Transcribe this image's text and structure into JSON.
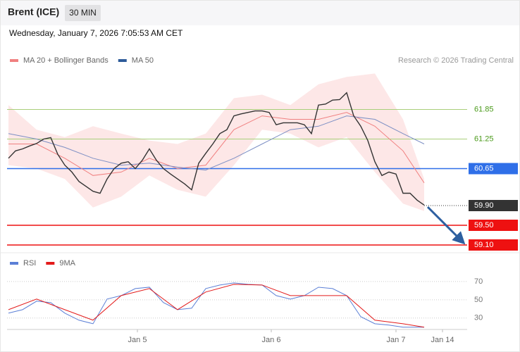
{
  "header": {
    "symbol": "Brent (ICE)",
    "interval": "30 MIN",
    "timestamp": "Wednesday, January 7, 2026 7:05:53 AM CET",
    "credit": "Research © 2026 Trading Central"
  },
  "chart_data": [
    {
      "type": "line",
      "xlim": [
        0,
        65.1
      ],
      "ylim": [
        59.0,
        63.5
      ],
      "series": [
        {
          "name": "MA 20 + Bollinger Bands",
          "color": "#f08080",
          "band_color": "#fde3e3",
          "x": [
            0,
            4,
            8,
            12,
            16,
            20,
            24,
            28,
            32,
            36,
            40,
            44,
            48,
            52,
            56,
            59
          ],
          "values": [
            61.15,
            61.15,
            60.86,
            60.51,
            60.58,
            60.86,
            60.65,
            60.72,
            61.44,
            61.72,
            61.65,
            61.65,
            61.79,
            61.51,
            61.01,
            60.36
          ],
          "upper": [
            61.94,
            61.44,
            61.29,
            61.51,
            61.36,
            61.22,
            61.15,
            61.36,
            62.08,
            62.15,
            61.94,
            62.36,
            62.51,
            62.58,
            61.65,
            60.44
          ],
          "lower": [
            60.72,
            60.65,
            60.44,
            59.86,
            60.08,
            60.51,
            60.22,
            60.08,
            60.72,
            61.44,
            61.36,
            61.08,
            61.29,
            60.58,
            59.94,
            59.79
          ]
        },
        {
          "name": "MA 50",
          "color": "#2e5b9a",
          "line_color": "#7d8fc4",
          "x": [
            0,
            4,
            8,
            12,
            16,
            20,
            24,
            28,
            32,
            36,
            40,
            44,
            48,
            52,
            56,
            59
          ],
          "values": [
            61.36,
            61.25,
            61.08,
            60.86,
            60.72,
            60.76,
            60.68,
            60.62,
            60.86,
            61.15,
            61.44,
            61.51,
            61.72,
            61.65,
            61.36,
            61.15
          ]
        },
        {
          "color": "#333333",
          "x": [
            0,
            1,
            2,
            3,
            4,
            5,
            6,
            7,
            8,
            9,
            10,
            11,
            12,
            13,
            14,
            15,
            16,
            17,
            18,
            19,
            20,
            21,
            22,
            23,
            24,
            25,
            26,
            27,
            28,
            29,
            30,
            31,
            32,
            33,
            34,
            35,
            36,
            37,
            38,
            39,
            40,
            41,
            42,
            43,
            44,
            45,
            46,
            47,
            48,
            49,
            50,
            51,
            52,
            53,
            54,
            55,
            56,
            57,
            58,
            59
          ],
          "values": [
            60.86,
            61.01,
            61.05,
            61.11,
            61.16,
            61.25,
            61.28,
            60.94,
            60.72,
            60.58,
            60.39,
            60.29,
            60.19,
            60.15,
            60.44,
            60.65,
            60.76,
            60.79,
            60.65,
            60.82,
            61.05,
            60.82,
            60.65,
            60.54,
            60.44,
            60.34,
            60.22,
            60.76,
            60.96,
            61.15,
            61.36,
            61.44,
            61.72,
            61.76,
            61.79,
            61.82,
            61.82,
            61.79,
            61.54,
            61.58,
            61.58,
            61.58,
            61.54,
            61.36,
            61.94,
            61.96,
            62.04,
            62.05,
            62.19,
            61.72,
            61.51,
            61.22,
            60.79,
            60.51,
            60.58,
            60.54,
            60.15,
            60.15,
            60.01,
            59.91
          ]
        }
      ],
      "levels": [
        {
          "value": 61.85,
          "color": "#a9cf7a",
          "text_color": "#4a9a1a",
          "style": "text",
          "dash": false
        },
        {
          "value": 61.25,
          "color": "#a9cf7a",
          "text_color": "#4a9a1a",
          "style": "text",
          "dash": false
        },
        {
          "value": 60.65,
          "color": "#2f6fe8",
          "style": "box",
          "dash": false
        },
        {
          "value": 59.9,
          "label": "59.90",
          "color": "#333333",
          "style": "box",
          "dash": true
        },
        {
          "value": 59.5,
          "label": "59.50",
          "color": "#ee1111",
          "style": "box",
          "dash": false
        },
        {
          "value": 59.1,
          "label": "59.10",
          "color": "#ee1111",
          "style": "box",
          "dash": false
        }
      ]
    },
    {
      "type": "line",
      "xlim": [
        0,
        65.1
      ],
      "ylim": [
        17.5,
        81.5
      ],
      "yticks": [
        70,
        50,
        30
      ],
      "grid": true,
      "xticks": [
        {
          "value": 18.3,
          "label": "Jan 5"
        },
        {
          "value": 37.3,
          "label": "Jan 6"
        },
        {
          "value": 55,
          "label": "Jan 7"
        },
        {
          "value": 61.6,
          "label": "Jan 14"
        }
      ],
      "series": [
        {
          "name": "RSI",
          "color": "#5b7fd6",
          "x": [
            0,
            2,
            4,
            6,
            8,
            10,
            12,
            14,
            16,
            18,
            20,
            22,
            24,
            26,
            28,
            30,
            32,
            34,
            36,
            38,
            40,
            42,
            44,
            46,
            48,
            50,
            52,
            54,
            56,
            59
          ],
          "values": [
            35.4,
            39.2,
            48.5,
            46.9,
            35.4,
            27.7,
            23.8,
            50.8,
            54.6,
            62.3,
            63.8,
            46.9,
            39.2,
            40.8,
            62.3,
            66.2,
            68.5,
            66.9,
            66.2,
            54.6,
            50.8,
            54.6,
            63.8,
            62.3,
            54.6,
            31.5,
            23.8,
            22.3,
            20.0,
            20.0
          ]
        },
        {
          "name": "9MA",
          "color": "#e31b1b",
          "x": [
            0,
            4,
            8,
            12,
            16,
            20,
            24,
            28,
            32,
            36,
            40,
            44,
            48,
            52,
            56,
            59
          ],
          "values": [
            39.2,
            50.8,
            39.2,
            27.7,
            54.6,
            62.3,
            39.2,
            58.5,
            66.9,
            66.2,
            54.6,
            54.6,
            54.6,
            27.7,
            23.8,
            20.0
          ]
        }
      ]
    }
  ]
}
